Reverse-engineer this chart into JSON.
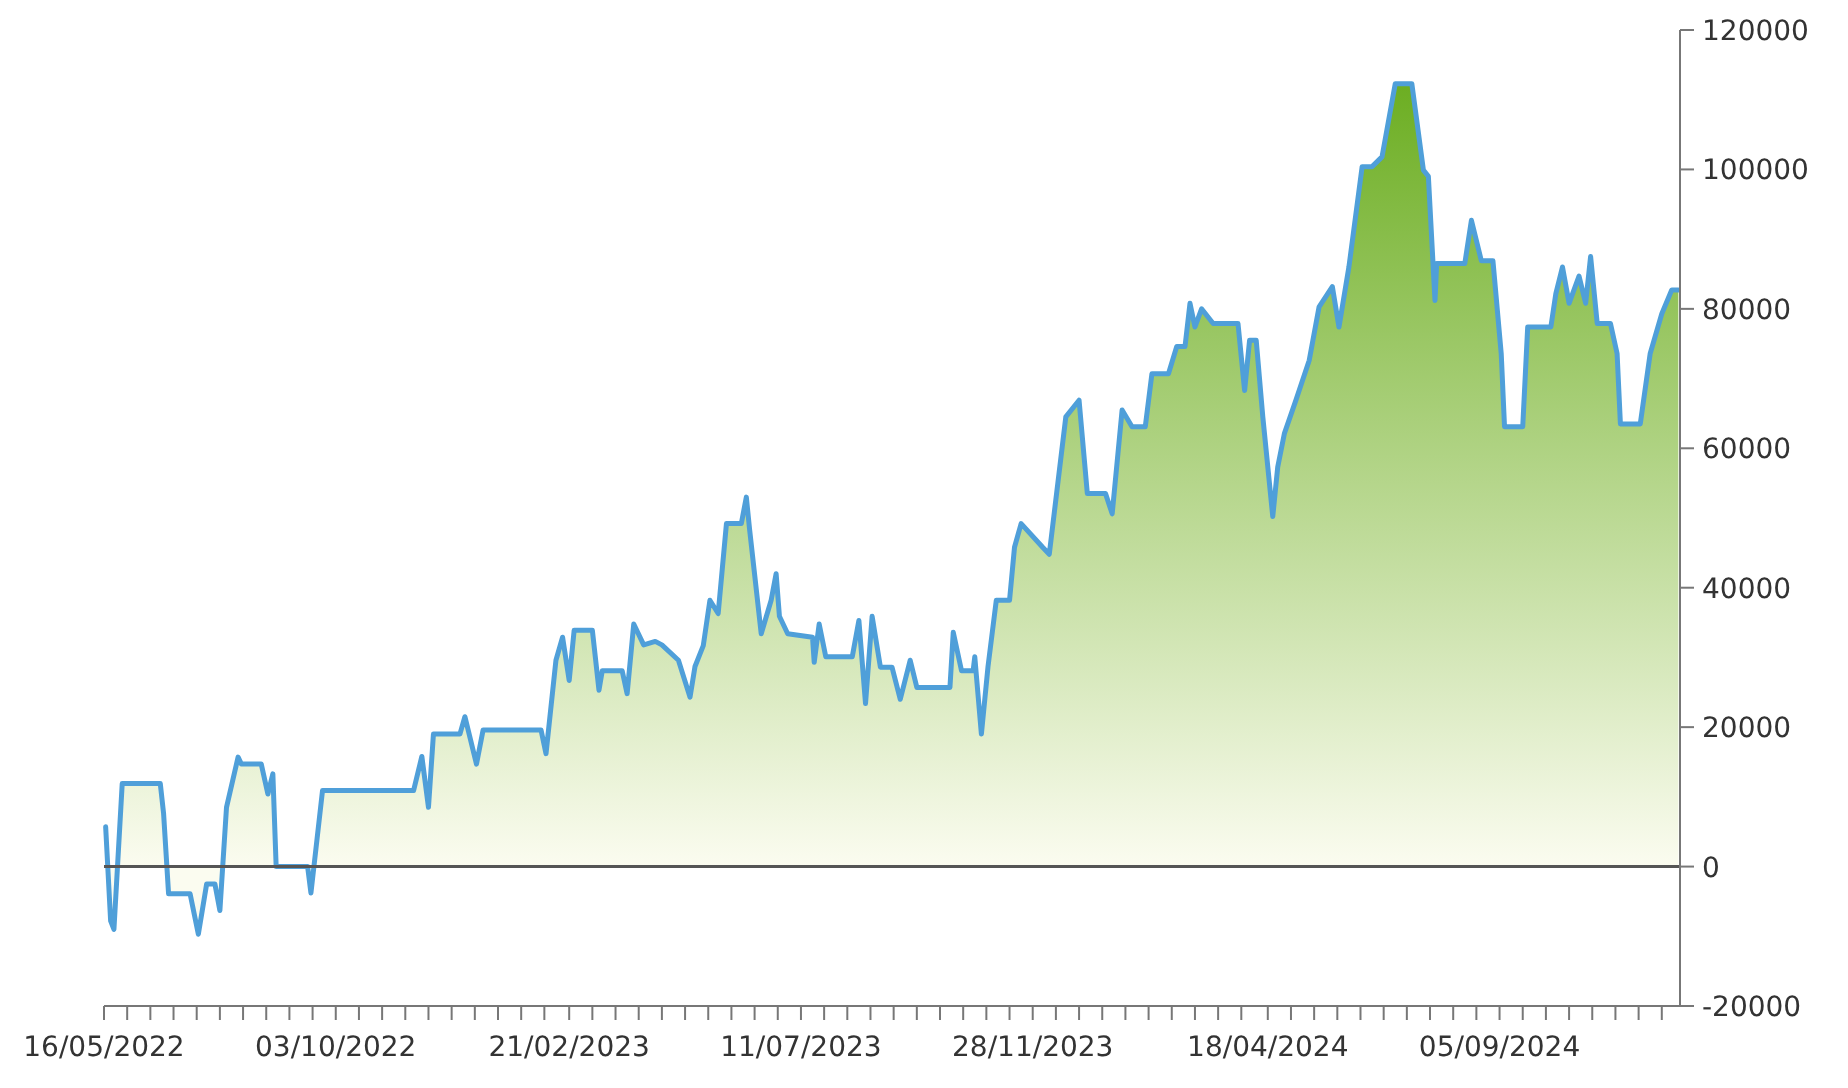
{
  "chart_data": {
    "type": "area",
    "x": [
      "2022-05-17",
      "2022-05-20",
      "2022-05-22",
      "2022-05-27",
      "2022-06-19",
      "2022-06-21",
      "2022-06-24",
      "2022-07-07",
      "2022-07-12",
      "2022-07-17",
      "2022-07-22",
      "2022-07-25",
      "2022-07-29",
      "2022-08-05",
      "2022-08-07",
      "2022-08-19",
      "2022-08-23",
      "2022-08-26",
      "2022-08-28",
      "2022-09-16",
      "2022-09-18",
      "2022-09-25",
      "2022-11-19",
      "2022-11-24",
      "2022-11-28",
      "2022-12-01",
      "2022-12-17",
      "2022-12-20",
      "2022-12-27",
      "2022-12-31",
      "2023-02-04",
      "2023-02-07",
      "2023-02-13",
      "2023-02-17",
      "2023-02-21",
      "2023-02-24",
      "2023-03-07",
      "2023-03-11",
      "2023-03-13",
      "2023-03-25",
      "2023-03-28",
      "2023-04-01",
      "2023-04-07",
      "2023-04-14",
      "2023-04-18",
      "2023-04-28",
      "2023-05-05",
      "2023-05-08",
      "2023-05-13",
      "2023-05-17",
      "2023-05-22",
      "2023-05-27",
      "2023-06-05",
      "2023-06-08",
      "2023-06-10",
      "2023-06-17",
      "2023-06-23",
      "2023-06-26",
      "2023-06-28",
      "2023-07-03",
      "2023-07-18",
      "2023-07-19",
      "2023-07-22",
      "2023-07-26",
      "2023-08-11",
      "2023-08-15",
      "2023-08-19",
      "2023-08-23",
      "2023-08-28",
      "2023-09-04",
      "2023-09-09",
      "2023-09-15",
      "2023-09-19",
      "2023-10-09",
      "2023-10-11",
      "2023-10-16",
      "2023-10-23",
      "2023-10-24",
      "2023-10-28",
      "2023-11-01",
      "2023-11-06",
      "2023-11-14",
      "2023-11-17",
      "2023-11-21",
      "2023-12-04",
      "2023-12-08",
      "2023-12-18",
      "2023-12-26",
      "2023-12-31",
      "2024-01-11",
      "2024-01-15",
      "2024-01-21",
      "2024-01-27",
      "2024-02-04",
      "2024-02-08",
      "2024-02-18",
      "2024-02-23",
      "2024-02-28",
      "2024-03-02",
      "2024-03-05",
      "2024-03-09",
      "2024-03-16",
      "2024-03-31",
      "2024-04-04",
      "2024-04-07",
      "2024-04-11",
      "2024-04-15",
      "2024-04-21",
      "2024-04-24",
      "2024-04-28",
      "2024-05-05",
      "2024-05-13",
      "2024-05-19",
      "2024-05-27",
      "2024-05-31",
      "2024-06-06",
      "2024-06-14",
      "2024-06-20",
      "2024-06-26",
      "2024-07-04",
      "2024-07-14",
      "2024-07-21",
      "2024-07-24",
      "2024-07-28",
      "2024-07-29",
      "2024-08-15",
      "2024-08-19",
      "2024-08-25",
      "2024-09-01",
      "2024-09-06",
      "2024-09-08",
      "2024-09-19",
      "2024-09-22",
      "2024-10-06",
      "2024-10-09",
      "2024-10-13",
      "2024-10-17",
      "2024-10-23",
      "2024-10-27",
      "2024-10-30",
      "2024-11-03",
      "2024-11-11",
      "2024-11-15",
      "2024-11-17",
      "2024-11-29",
      "2024-12-05",
      "2024-12-12",
      "2024-12-18",
      "2024-12-22"
    ],
    "series": [
      {
        "color": "#4f9fd9",
        "values": [
          5700,
          -7800,
          -9000,
          11900,
          11900,
          7600,
          -3900,
          -3900,
          -9700,
          -2500,
          -2500,
          -6300,
          8500,
          15700,
          14700,
          14700,
          10400,
          13300,
          0,
          0,
          -3800,
          10900,
          10900,
          15800,
          8500,
          19000,
          19000,
          21500,
          14700,
          19600,
          19600,
          16200,
          29600,
          32900,
          26700,
          33900,
          33900,
          25300,
          28100,
          28100,
          24800,
          34800,
          31800,
          32300,
          31800,
          29600,
          24300,
          28700,
          31700,
          38200,
          36300,
          49200,
          49200,
          53000,
          48300,
          33400,
          38200,
          42000,
          35900,
          33400,
          32900,
          29300,
          34800,
          30100,
          30100,
          35300,
          23400,
          35900,
          28600,
          28600,
          24000,
          29600,
          25700,
          25700,
          33600,
          28100,
          28100,
          30100,
          19000,
          28700,
          38200,
          38200,
          45800,
          49200,
          45800,
          44800,
          64500,
          66900,
          53500,
          53500,
          50600,
          65500,
          63100,
          63100,
          70700,
          70700,
          74600,
          74600,
          80800,
          77400,
          80000,
          77900,
          77900,
          68300,
          75500,
          75500,
          64500,
          50200,
          57300,
          62100,
          66900,
          72600,
          80300,
          83200,
          77400,
          86000,
          100400,
          100400,
          101800,
          112300,
          112300,
          99900,
          99000,
          81200,
          86500,
          86500,
          92700,
          86900,
          86900,
          73600,
          63100,
          63100,
          77400,
          77400,
          82200,
          86000,
          80800,
          84700,
          80800,
          87500,
          77900,
          77900,
          73600,
          63500,
          63500,
          73600,
          79300,
          82700,
          82700
        ]
      }
    ],
    "xlim": [
      "2022-05-16",
      "2024-12-23"
    ],
    "xticks": [
      {
        "value": "2022-05-16",
        "label": "16/05/2022"
      },
      {
        "value": "2022-05-30",
        "label": null
      },
      {
        "value": "2022-06-13",
        "label": null
      },
      {
        "value": "2022-06-27",
        "label": null
      },
      {
        "value": "2022-07-11",
        "label": null
      },
      {
        "value": "2022-07-25",
        "label": null
      },
      {
        "value": "2022-08-08",
        "label": null
      },
      {
        "value": "2022-08-22",
        "label": null
      },
      {
        "value": "2022-09-05",
        "label": null
      },
      {
        "value": "2022-09-19",
        "label": null
      },
      {
        "value": "2022-10-03",
        "label": "03/10/2022"
      },
      {
        "value": "2022-10-17",
        "label": null
      },
      {
        "value": "2022-10-31",
        "label": null
      },
      {
        "value": "2022-11-14",
        "label": null
      },
      {
        "value": "2022-11-28",
        "label": null
      },
      {
        "value": "2022-12-12",
        "label": null
      },
      {
        "value": "2022-12-26",
        "label": null
      },
      {
        "value": "2023-01-09",
        "label": null
      },
      {
        "value": "2023-01-23",
        "label": null
      },
      {
        "value": "2023-02-06",
        "label": null
      },
      {
        "value": "2023-02-21",
        "label": "21/02/2023"
      },
      {
        "value": "2023-03-07",
        "label": null
      },
      {
        "value": "2023-03-21",
        "label": null
      },
      {
        "value": "2023-04-04",
        "label": null
      },
      {
        "value": "2023-04-18",
        "label": null
      },
      {
        "value": "2023-05-02",
        "label": null
      },
      {
        "value": "2023-05-16",
        "label": null
      },
      {
        "value": "2023-05-30",
        "label": null
      },
      {
        "value": "2023-06-13",
        "label": null
      },
      {
        "value": "2023-06-27",
        "label": null
      },
      {
        "value": "2023-07-11",
        "label": "11/07/2023"
      },
      {
        "value": "2023-07-25",
        "label": null
      },
      {
        "value": "2023-08-08",
        "label": null
      },
      {
        "value": "2023-08-22",
        "label": null
      },
      {
        "value": "2023-09-05",
        "label": null
      },
      {
        "value": "2023-09-19",
        "label": null
      },
      {
        "value": "2023-10-03",
        "label": null
      },
      {
        "value": "2023-10-17",
        "label": null
      },
      {
        "value": "2023-10-31",
        "label": null
      },
      {
        "value": "2023-11-14",
        "label": null
      },
      {
        "value": "2023-11-28",
        "label": "28/11/2023"
      },
      {
        "value": "2023-12-12",
        "label": null
      },
      {
        "value": "2023-12-26",
        "label": null
      },
      {
        "value": "2024-01-09",
        "label": null
      },
      {
        "value": "2024-01-23",
        "label": null
      },
      {
        "value": "2024-02-06",
        "label": null
      },
      {
        "value": "2024-02-20",
        "label": null
      },
      {
        "value": "2024-03-05",
        "label": null
      },
      {
        "value": "2024-03-19",
        "label": null
      },
      {
        "value": "2024-04-02",
        "label": null
      },
      {
        "value": "2024-04-18",
        "label": "18/04/2024"
      },
      {
        "value": "2024-05-02",
        "label": null
      },
      {
        "value": "2024-05-16",
        "label": null
      },
      {
        "value": "2024-05-30",
        "label": null
      },
      {
        "value": "2024-06-13",
        "label": null
      },
      {
        "value": "2024-06-27",
        "label": null
      },
      {
        "value": "2024-07-11",
        "label": null
      },
      {
        "value": "2024-07-25",
        "label": null
      },
      {
        "value": "2024-08-08",
        "label": null
      },
      {
        "value": "2024-08-22",
        "label": null
      },
      {
        "value": "2024-09-05",
        "label": "05/09/2024"
      },
      {
        "value": "2024-09-19",
        "label": null
      },
      {
        "value": "2024-10-03",
        "label": null
      },
      {
        "value": "2024-10-17",
        "label": null
      },
      {
        "value": "2024-10-31",
        "label": null
      },
      {
        "value": "2024-11-14",
        "label": null
      },
      {
        "value": "2024-11-28",
        "label": null
      },
      {
        "value": "2024-12-12",
        "label": null
      }
    ],
    "ylim": [
      -20000,
      120000
    ],
    "yticks": [
      -20000,
      0,
      20000,
      40000,
      60000,
      80000,
      100000,
      120000
    ],
    "ref_lines": [
      {
        "axis": "y",
        "value": 0,
        "color": "#555555"
      }
    ],
    "grid": false
  }
}
